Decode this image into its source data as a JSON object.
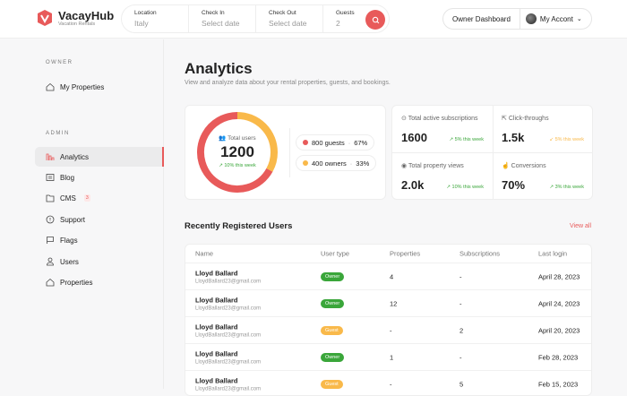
{
  "header": {
    "brand": "VacayHub",
    "tagline": "Vacation Rentals",
    "search": [
      {
        "label": "Location",
        "value": "Italy"
      },
      {
        "label": "Check In",
        "value": "Select date"
      },
      {
        "label": "Check Out",
        "value": "Select date"
      },
      {
        "label": "Guests",
        "value": "2"
      }
    ],
    "owner_dashboard": "Owner Dashboard",
    "account": "My Accont"
  },
  "sidebar": {
    "owner_label": "OWNER",
    "owner_items": [
      {
        "label": "My Properties",
        "icon": "home-icon"
      }
    ],
    "admin_label": "ADMIN",
    "admin_items": [
      {
        "label": "Analytics",
        "icon": "chart-icon",
        "active": true
      },
      {
        "label": "Blog",
        "icon": "newspaper-icon"
      },
      {
        "label": "CMS",
        "icon": "folder-icon",
        "badge": "3"
      },
      {
        "label": "Support",
        "icon": "info-icon"
      },
      {
        "label": "Flags",
        "icon": "flag-icon"
      },
      {
        "label": "Users",
        "icon": "user-icon"
      },
      {
        "label": "Properties",
        "icon": "home-icon"
      }
    ]
  },
  "page": {
    "title": "Analytics",
    "subtitle": "View and analyze data about your rental properties, guests, and bookings."
  },
  "users_card": {
    "label": "Total users",
    "total": "1200",
    "change": "↗ 10% this week",
    "guests": "800 guests",
    "guests_pct": "67%",
    "owners": "400 owners",
    "owners_pct": "33%",
    "guest_fraction": 0.67,
    "colors": {
      "guests": "#e85a5a",
      "owners": "#f9b94a"
    }
  },
  "stats": [
    {
      "label": "Total active subscriptions",
      "value": "1600",
      "change": "↗ 5% this week",
      "trend": "up"
    },
    {
      "label": "Click-throughs",
      "value": "1.5k",
      "change": "↙ 5% this week",
      "trend": "down"
    },
    {
      "label": "Total property views",
      "value": "2.0k",
      "change": "↗ 10% this week",
      "trend": "up"
    },
    {
      "label": "Conversions",
      "value": "70%",
      "change": "↗ 3% this week",
      "trend": "up"
    }
  ],
  "recent": {
    "title": "Recently Registered Users",
    "view_all": "View all",
    "columns": [
      "Name",
      "User type",
      "Properties",
      "Subscriptions",
      "Last login"
    ],
    "rows": [
      {
        "name": "Lloyd Ballard",
        "email": "LloydBallard23@gmail.com",
        "type": "Owner",
        "properties": "4",
        "subscriptions": "-",
        "last_login": "April 28, 2023"
      },
      {
        "name": "Lloyd Ballard",
        "email": "LloydBallard23@gmail.com",
        "type": "Owner",
        "properties": "12",
        "subscriptions": "-",
        "last_login": "April 24, 2023"
      },
      {
        "name": "Lloyd Ballard",
        "email": "LloydBallard23@gmail.com",
        "type": "Guest",
        "properties": "-",
        "subscriptions": "2",
        "last_login": "April 20, 2023"
      },
      {
        "name": "Lloyd Ballard",
        "email": "LloydBallard23@gmail.com",
        "type": "Owner",
        "properties": "1",
        "subscriptions": "-",
        "last_login": "Feb 28, 2023"
      },
      {
        "name": "Lloyd Ballard",
        "email": "LloydBallard23@gmail.com",
        "type": "Guest",
        "properties": "-",
        "subscriptions": "5",
        "last_login": "Feb 15, 2023"
      }
    ]
  },
  "colors": {
    "accent": "#e85a5a",
    "owner": "#3aa63a",
    "guest": "#f9b94a",
    "up": "#3aa63a",
    "down": "#f9b94a"
  }
}
